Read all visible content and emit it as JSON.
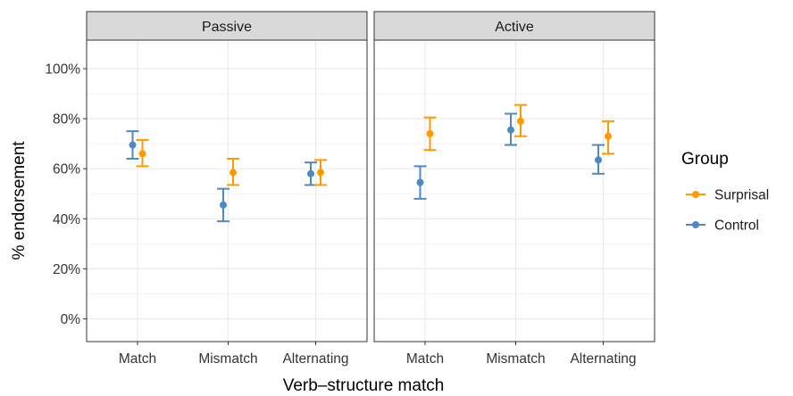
{
  "chart_data": {
    "type": "errorbar",
    "title": "",
    "xlabel": "Verb–structure match",
    "ylabel": "% endorsement",
    "ylim": [
      -0.09,
      1.11
    ],
    "yticks": [
      0,
      0.2,
      0.4,
      0.6,
      0.8,
      1.0
    ],
    "ytick_labels": [
      "0%",
      "20%",
      "40%",
      "60%",
      "80%",
      "100%"
    ],
    "grid": true,
    "legend_position": "right",
    "legend_title": "Group",
    "categories": [
      "Match",
      "Mismatch",
      "Alternating"
    ],
    "panels": [
      {
        "name": "Passive",
        "series": [
          {
            "name": "Surprisal",
            "color": "#FF9900",
            "values": [
              0.66,
              0.585,
              0.585
            ],
            "lower": [
              0.61,
              0.535,
              0.535
            ],
            "upper": [
              0.715,
              0.64,
              0.635
            ]
          },
          {
            "name": "Control",
            "color": "#4D89C3",
            "values": [
              0.695,
              0.455,
              0.58
            ],
            "lower": [
              0.64,
              0.39,
              0.535
            ],
            "upper": [
              0.75,
              0.52,
              0.625
            ]
          }
        ]
      },
      {
        "name": "Active",
        "series": [
          {
            "name": "Surprisal",
            "color": "#FF9900",
            "values": [
              0.74,
              0.79,
              0.73
            ],
            "lower": [
              0.675,
              0.73,
              0.66
            ],
            "upper": [
              0.805,
              0.855,
              0.79
            ]
          },
          {
            "name": "Control",
            "color": "#4D89C3",
            "values": [
              0.545,
              0.755,
              0.635
            ],
            "lower": [
              0.48,
              0.695,
              0.58
            ],
            "upper": [
              0.61,
              0.82,
              0.695
            ]
          }
        ]
      }
    ]
  }
}
